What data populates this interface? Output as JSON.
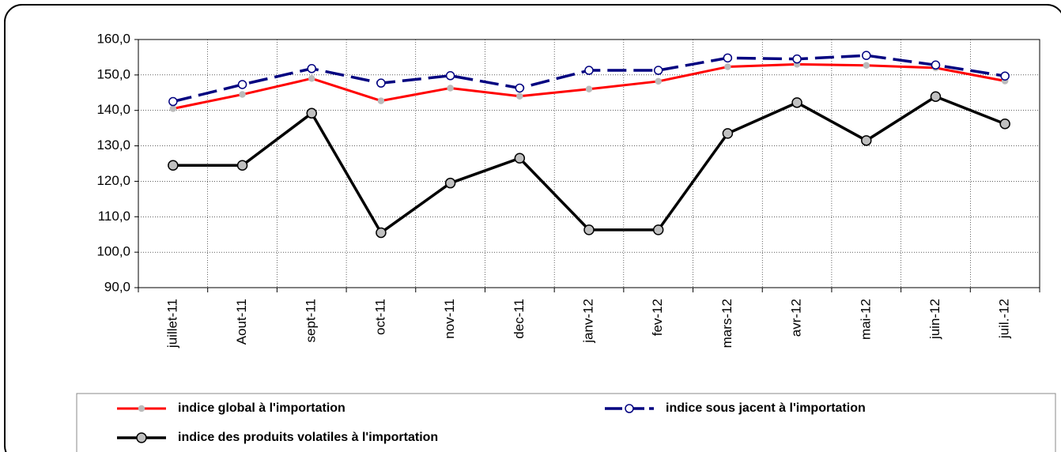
{
  "chart_data": {
    "type": "line",
    "categories": [
      "juillet-11",
      "Aout-11",
      "sept-11",
      "oct-11",
      "nov-11",
      "dec-11",
      "janv-12",
      "fev-12",
      "mars-12",
      "avr-12",
      "mai-12",
      "juin-12",
      "juil.-12"
    ],
    "series": [
      {
        "name": "indice global à l'importation",
        "color": "#ff0000",
        "values": [
          140.5,
          144.5,
          149,
          142.7,
          146.3,
          144,
          146,
          148.2,
          152.3,
          153,
          152.7,
          152,
          148.3
        ]
      },
      {
        "name": "indice sous jacent à l'importation",
        "color": "#000080",
        "values": [
          142.5,
          147.3,
          151.8,
          147.7,
          149.8,
          146.3,
          151.3,
          151.3,
          154.8,
          154.5,
          155.5,
          152.8,
          149.7
        ]
      },
      {
        "name": "indice des produits volatiles à l'importation",
        "color": "#000000",
        "values": [
          124.5,
          124.5,
          139.2,
          105.5,
          119.5,
          126.5,
          106.3,
          106.3,
          133.5,
          142.2,
          131.5,
          143.9,
          136.2
        ]
      }
    ],
    "ylim": [
      90,
      160
    ],
    "yticks": [
      {
        "value": 90,
        "label": "90,0"
      },
      {
        "value": 100,
        "label": "100,0"
      },
      {
        "value": 110,
        "label": "110,0"
      },
      {
        "value": 120,
        "label": "120,0"
      },
      {
        "value": 130,
        "label": "130,0"
      },
      {
        "value": 140,
        "label": "140,0"
      },
      {
        "value": 150,
        "label": "150,0"
      },
      {
        "value": 160,
        "label": "160,0"
      }
    ],
    "grid": true
  }
}
